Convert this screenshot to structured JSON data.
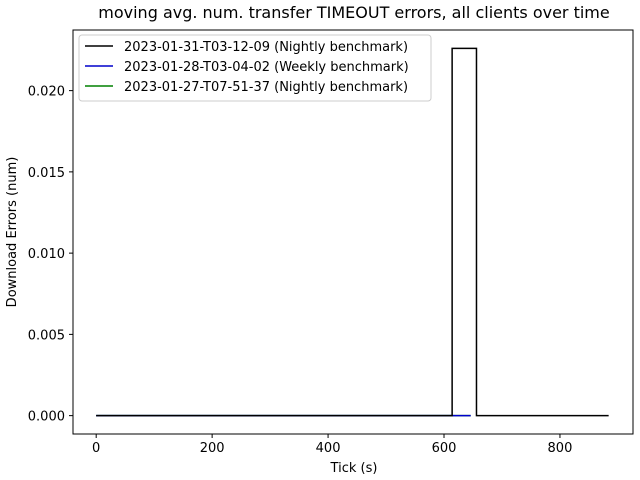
{
  "chart_data": {
    "type": "line",
    "title": "moving avg. num. transfer TIMEOUT errors, all clients over time",
    "xlabel": "Tick (s)",
    "ylabel": "Download Errors (num)",
    "xlim": [
      -40,
      926
    ],
    "ylim": [
      -0.00113,
      0.02373
    ],
    "xticks": [
      0,
      200,
      400,
      600,
      800
    ],
    "yticks": [
      0.0,
      0.005,
      0.01,
      0.015,
      0.02
    ],
    "ytick_labels": [
      "0.000",
      "0.005",
      "0.010",
      "0.015",
      "0.020"
    ],
    "grid": false,
    "legend_position": "upper left",
    "series": [
      {
        "name": "2023-01-31-T03-12-09 (Nightly benchmark)",
        "color": "#000000",
        "x": [
          0,
          614,
          614,
          656,
          656,
          884
        ],
        "y": [
          0,
          0,
          0.0226,
          0.0226,
          0,
          0
        ]
      },
      {
        "name": "2023-01-28-T03-04-02 (Weekly benchmark)",
        "color": "#0000cc",
        "x": [
          0,
          646
        ],
        "y": [
          0,
          0
        ]
      },
      {
        "name": "2023-01-27-T07-51-37 (Nightly benchmark)",
        "color": "#008000",
        "x": [
          0,
          646
        ],
        "y": [
          0,
          0
        ]
      }
    ]
  }
}
